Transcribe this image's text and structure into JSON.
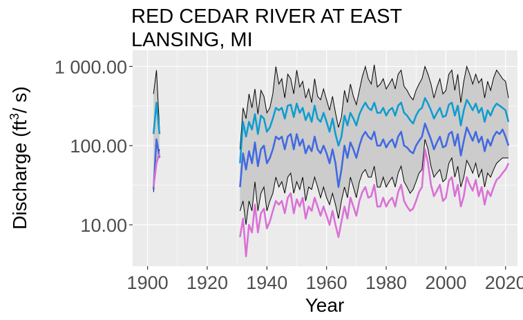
{
  "chart_data": {
    "type": "line",
    "title_lines": [
      "RED CEDAR RIVER AT EAST",
      "LANSING, MI"
    ],
    "xlabel": "Year",
    "ylabel_parts": [
      "Discharge (ft",
      "3",
      "/ s)"
    ],
    "xlim": [
      1895,
      2024
    ],
    "ylim": [
      3.0,
      1600
    ],
    "y_scale": "log",
    "x_ticks": [
      {
        "value": 1900,
        "label": "1900"
      },
      {
        "value": 1920,
        "label": "1920"
      },
      {
        "value": 1940,
        "label": "1940"
      },
      {
        "value": 1960,
        "label": "1960"
      },
      {
        "value": 1980,
        "label": "1980"
      },
      {
        "value": 2000,
        "label": "2000"
      },
      {
        "value": 2020,
        "label": "2020"
      }
    ],
    "y_ticks": [
      {
        "value": 10,
        "label": "10.00"
      },
      {
        "value": 100,
        "label": "100.00"
      },
      {
        "value": 1000,
        "label": "1 000.00"
      }
    ],
    "grid": true,
    "panel_background": "#ebebeb",
    "band": {
      "fill": "#cccccc",
      "outline": "#000000",
      "segments": [
        {
          "x": [
            1902,
            1903,
            1904
          ],
          "upper": [
            450,
            900,
            160
          ],
          "lower": [
            26,
            60,
            90
          ]
        },
        {
          "x": [
            1931,
            1932,
            1933,
            1934,
            1935,
            1936,
            1937,
            1938,
            1939,
            1940,
            1941,
            1942,
            1943,
            1944,
            1945,
            1946,
            1947,
            1948,
            1949,
            1950,
            1951,
            1952,
            1953,
            1954,
            1955,
            1956,
            1957,
            1958,
            1959,
            1960,
            1961,
            1962,
            1963,
            1964,
            1965,
            1966,
            1967,
            1968,
            1969,
            1970,
            1971,
            1972,
            1973,
            1974,
            1975,
            1976,
            1977,
            1978,
            1979,
            1980,
            1981,
            1982,
            1983,
            1984,
            1985,
            1986,
            1987,
            1988,
            1989,
            1990,
            1991,
            1992,
            1993,
            1994,
            1995,
            1996,
            1997,
            1998,
            1999,
            2000,
            2001,
            2002,
            2003,
            2004,
            2005,
            2006,
            2007,
            2008,
            2009,
            2010,
            2011,
            2012,
            2013,
            2014,
            2015,
            2016,
            2017,
            2018,
            2019,
            2020,
            2021
          ],
          "upper": [
            90,
            300,
            220,
            450,
            300,
            520,
            250,
            500,
            420,
            260,
            300,
            450,
            1000,
            600,
            700,
            400,
            800,
            700,
            450,
            900,
            550,
            650,
            400,
            520,
            350,
            700,
            420,
            380,
            520,
            380,
            280,
            420,
            260,
            170,
            230,
            500,
            350,
            600,
            420,
            330,
            500,
            750,
            1000,
            700,
            600,
            1050,
            550,
            600,
            700,
            520,
            600,
            700,
            520,
            800,
            900,
            560,
            500,
            420,
            380,
            500,
            600,
            700,
            1000,
            800,
            600,
            400,
            550,
            700,
            450,
            500,
            800,
            900,
            500,
            800,
            350,
            650,
            1000,
            800,
            600,
            800,
            620,
            700,
            400,
            650,
            500,
            720,
            900,
            800,
            700,
            650,
            400
          ],
          "lower": [
            15,
            20,
            10,
            20,
            15,
            35,
            15,
            25,
            30,
            15,
            20,
            25,
            40,
            30,
            35,
            25,
            40,
            45,
            25,
            35,
            28,
            40,
            20,
            30,
            28,
            40,
            30,
            22,
            30,
            22,
            18,
            25,
            18,
            12,
            20,
            30,
            22,
            40,
            30,
            22,
            35,
            45,
            50,
            40,
            40,
            55,
            30,
            30,
            40,
            30,
            35,
            40,
            30,
            45,
            55,
            35,
            30,
            25,
            28,
            35,
            45,
            50,
            120,
            90,
            55,
            40,
            45,
            50,
            35,
            38,
            60,
            70,
            40,
            55,
            30,
            40,
            65,
            55,
            45,
            60,
            40,
            50,
            30,
            45,
            40,
            50,
            60,
            65,
            70,
            70,
            70
          ]
        }
      ]
    },
    "series": [
      {
        "color": "#0f9dcf",
        "segments": [
          {
            "x": [
              1902,
              1903,
              1904
            ],
            "y": [
              140,
              350,
              140
            ]
          },
          {
            "x": [
              1931,
              1932,
              1933,
              1934,
              1935,
              1936,
              1937,
              1938,
              1939,
              1940,
              1941,
              1942,
              1943,
              1944,
              1945,
              1946,
              1947,
              1948,
              1949,
              1950,
              1951,
              1952,
              1953,
              1954,
              1955,
              1956,
              1957,
              1958,
              1959,
              1960,
              1961,
              1962,
              1963,
              1964,
              1965,
              1966,
              1967,
              1968,
              1969,
              1970,
              1971,
              1972,
              1973,
              1974,
              1975,
              1976,
              1977,
              1978,
              1979,
              1980,
              1981,
              1982,
              1983,
              1984,
              1985,
              1986,
              1987,
              1988,
              1989,
              1990,
              1991,
              1992,
              1993,
              1994,
              1995,
              1996,
              1997,
              1998,
              1999,
              2000,
              2001,
              2002,
              2003,
              2004,
              2005,
              2006,
              2007,
              2008,
              2009,
              2010,
              2011,
              2012,
              2013,
              2014,
              2015,
              2016,
              2017,
              2018,
              2019,
              2020,
              2021
            ],
            "y": [
              60,
              200,
              130,
              200,
              160,
              250,
              140,
              240,
              220,
              150,
              170,
              220,
              300,
              280,
              300,
              220,
              320,
              330,
              230,
              340,
              260,
              300,
              210,
              260,
              200,
              320,
              220,
              200,
              260,
              200,
              150,
              220,
              140,
              100,
              130,
              240,
              180,
              260,
              220,
              180,
              250,
              300,
              350,
              300,
              280,
              350,
              260,
              260,
              300,
              240,
              280,
              300,
              240,
              320,
              350,
              260,
              240,
              210,
              190,
              240,
              280,
              300,
              400,
              340,
              280,
              220,
              260,
              300,
              230,
              240,
              330,
              350,
              240,
              320,
              180,
              280,
              380,
              330,
              280,
              340,
              260,
              300,
              200,
              280,
              240,
              300,
              340,
              320,
              300,
              280,
              200
            ]
          }
        ]
      },
      {
        "color": "#4169e1",
        "segments": [
          {
            "x": [
              1902,
              1903,
              1904
            ],
            "y": [
              28,
              120,
              70
            ]
          },
          {
            "x": [
              1931,
              1932,
              1933,
              1934,
              1935,
              1936,
              1937,
              1938,
              1939,
              1940,
              1941,
              1942,
              1943,
              1944,
              1945,
              1946,
              1947,
              1948,
              1949,
              1950,
              1951,
              1952,
              1953,
              1954,
              1955,
              1956,
              1957,
              1958,
              1959,
              1960,
              1961,
              1962,
              1963,
              1964,
              1965,
              1966,
              1967,
              1968,
              1969,
              1970,
              1971,
              1972,
              1973,
              1974,
              1975,
              1976,
              1977,
              1978,
              1979,
              1980,
              1981,
              1982,
              1983,
              1984,
              1985,
              1986,
              1987,
              1988,
              1989,
              1990,
              1991,
              1992,
              1993,
              1994,
              1995,
              1996,
              1997,
              1998,
              1999,
              2000,
              2001,
              2002,
              2003,
              2004,
              2005,
              2006,
              2007,
              2008,
              2009,
              2010,
              2011,
              2012,
              2013,
              2014,
              2015,
              2016,
              2017,
              2018,
              2019,
              2020,
              2021
            ],
            "y": [
              30,
              80,
              50,
              85,
              60,
              110,
              55,
              90,
              100,
              60,
              70,
              90,
              130,
              120,
              130,
              90,
              130,
              140,
              90,
              140,
              100,
              120,
              80,
              100,
              85,
              130,
              90,
              80,
              100,
              80,
              60,
              90,
              60,
              30,
              50,
              100,
              70,
              110,
              90,
              70,
              100,
              130,
              150,
              130,
              120,
              150,
              100,
              100,
              120,
              95,
              110,
              120,
              95,
              130,
              150,
              100,
              95,
              85,
              80,
              100,
              115,
              130,
              190,
              150,
              120,
              90,
              110,
              130,
              95,
              100,
              140,
              150,
              100,
              140,
              75,
              115,
              170,
              140,
              115,
              150,
              110,
              130,
              85,
              120,
              100,
              130,
              150,
              140,
              160,
              130,
              100
            ]
          }
        ]
      },
      {
        "color": "#da70d6",
        "segments": [
          {
            "x": [
              1902,
              1903,
              1904
            ],
            "y": [
              30,
              60,
              80
            ]
          },
          {
            "x": [
              1931,
              1932,
              1933,
              1934,
              1935,
              1936,
              1937,
              1938,
              1939,
              1940,
              1941,
              1942,
              1943,
              1944,
              1945,
              1946,
              1947,
              1948,
              1949,
              1950,
              1951,
              1952,
              1953,
              1954,
              1955,
              1956,
              1957,
              1958,
              1959,
              1960,
              1961,
              1962,
              1963,
              1964,
              1965,
              1966,
              1967,
              1968,
              1969,
              1970,
              1971,
              1972,
              1973,
              1974,
              1975,
              1976,
              1977,
              1978,
              1979,
              1980,
              1981,
              1982,
              1983,
              1984,
              1985,
              1986,
              1987,
              1988,
              1989,
              1990,
              1991,
              1992,
              1993,
              1994,
              1995,
              1996,
              1997,
              1998,
              1999,
              2000,
              2001,
              2002,
              2003,
              2004,
              2005,
              2006,
              2007,
              2008,
              2009,
              2010,
              2011,
              2012,
              2013,
              2014,
              2015,
              2016,
              2017,
              2018,
              2019,
              2020,
              2021
            ],
            "y": [
              7,
              12,
              4,
              10,
              8,
              18,
              8,
              14,
              16,
              9,
              11,
              15,
              20,
              18,
              20,
              14,
              22,
              25,
              14,
              21,
              17,
              22,
              12,
              17,
              15,
              22,
              17,
              13,
              17,
              13,
              10,
              15,
              10,
              7,
              11,
              17,
              12,
              22,
              17,
              13,
              20,
              26,
              30,
              22,
              23,
              32,
              17,
              17,
              22,
              17,
              20,
              22,
              17,
              26,
              32,
              20,
              17,
              15,
              16,
              20,
              26,
              30,
              90,
              60,
              32,
              23,
              27,
              32,
              20,
              22,
              36,
              40,
              23,
              32,
              17,
              23,
              40,
              32,
              27,
              37,
              23,
              30,
              18,
              27,
              23,
              30,
              37,
              40,
              45,
              50,
              60
            ]
          }
        ]
      }
    ]
  }
}
